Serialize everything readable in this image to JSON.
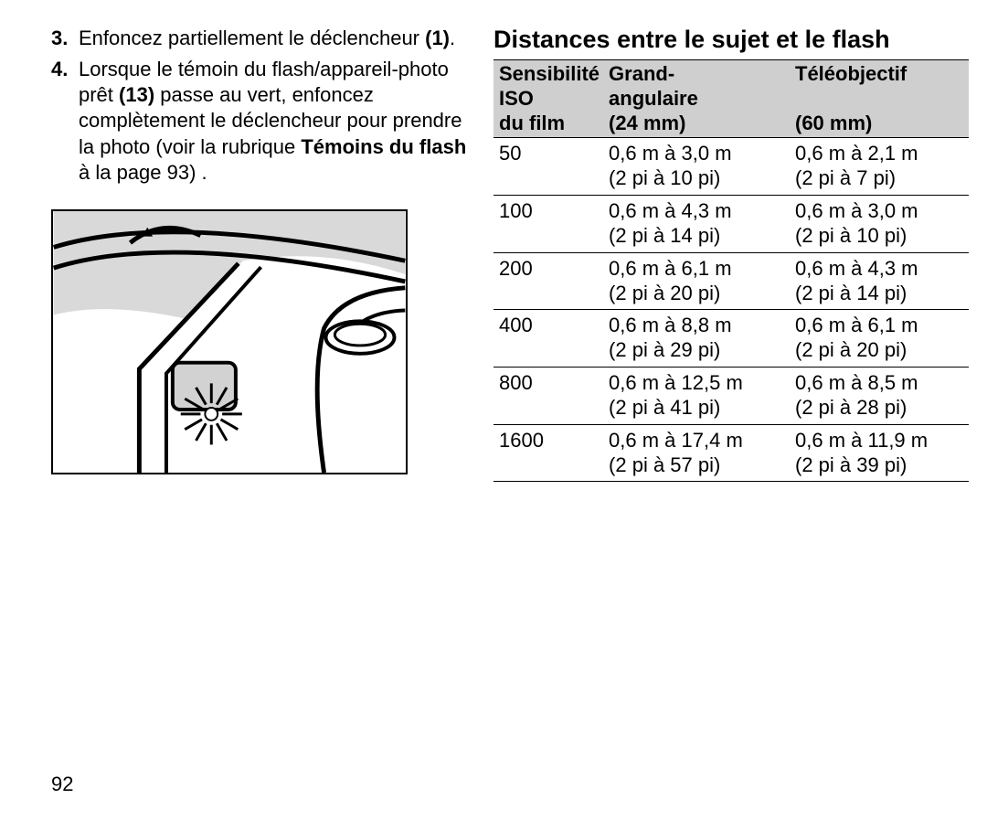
{
  "pageNumber": "92",
  "steps": [
    {
      "num": "3.",
      "segments": [
        {
          "t": "Enfoncez partiellement le déclencheur ",
          "b": false
        },
        {
          "t": "(1)",
          "b": true
        },
        {
          "t": ".",
          "b": false
        }
      ]
    },
    {
      "num": "4.",
      "segments": [
        {
          "t": "Lorsque le témoin du flash/appareil-photo prêt ",
          "b": false
        },
        {
          "t": "(13)",
          "b": true
        },
        {
          "t": " passe au vert, enfoncez complètement le déclencheur pour prendre la photo (voir la rubrique ",
          "b": false
        },
        {
          "t": "Témoins du flash",
          "b": true
        },
        {
          "t": " à la page 93) .",
          "b": false
        }
      ]
    }
  ],
  "sectionTitle": "Distances entre le sujet et le flash",
  "headers": {
    "iso": "Sensibilité ISO du film",
    "wide": "Grand-angulaire (24 mm)",
    "tele": "Téléobjectif (60 mm)"
  },
  "rows": [
    {
      "iso": "50",
      "wide_m": "0,6 m à 3,0 m",
      "wide_ft": "(2 pi à 10 pi)",
      "tele_m": "0,6 m à 2,1 m",
      "tele_ft": "(2 pi à 7 pi)"
    },
    {
      "iso": "100",
      "wide_m": "0,6 m à 4,3 m",
      "wide_ft": "(2 pi à 14 pi)",
      "tele_m": "0,6 m à 3,0 m",
      "tele_ft": "(2 pi à 10 pi)"
    },
    {
      "iso": "200",
      "wide_m": "0,6 m à 6,1 m",
      "wide_ft": "(2 pi à 20 pi)",
      "tele_m": "0,6 m à 4,3 m",
      "tele_ft": "(2 pi à 14 pi)"
    },
    {
      "iso": "400",
      "wide_m": "0,6 m à 8,8 m",
      "wide_ft": "(2 pi à 29 pi)",
      "tele_m": "0,6 m à 6,1 m",
      "tele_ft": "(2 pi à 20 pi)"
    },
    {
      "iso": "800",
      "wide_m": "0,6 m à 12,5 m",
      "wide_ft": "(2 pi à 41 pi)",
      "tele_m": "0,6 m à 8,5 m",
      "tele_ft": "(2 pi à 28 pi)"
    },
    {
      "iso": "1600",
      "wide_m": "0,6 m à 17,4 m",
      "wide_ft": "(2 pi à 57 pi)",
      "tele_m": "0,6 m à 11,9 m",
      "tele_ft": "(2 pi à 39 pi)"
    }
  ],
  "illus": {
    "body_fill": "#d9d9d9",
    "line": "#000000",
    "lcd_fill": "#d2d2d2"
  }
}
